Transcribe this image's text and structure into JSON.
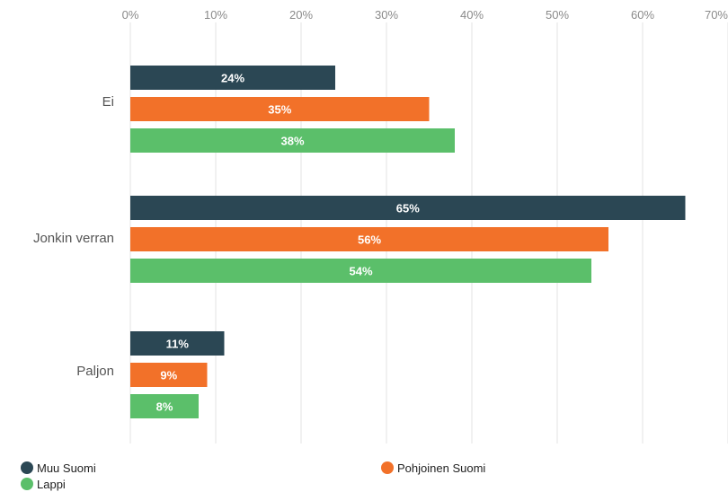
{
  "colors": {
    "muu_suomi": "#2b4754",
    "pohjoinen_suomi": "#f27129",
    "lappi": "#5bbf6a",
    "grid": "#e3e3e3",
    "tick_text": "#8a8a8a",
    "category_text": "#555555"
  },
  "chart_data": {
    "type": "bar",
    "orientation": "horizontal",
    "categories": [
      "Ei",
      "Jonkin verran",
      "Paljon"
    ],
    "series": [
      {
        "name": "Muu Suomi",
        "color": "#2b4754",
        "values": [
          24,
          65,
          11
        ],
        "labels": [
          "24%",
          "65%",
          "11%"
        ]
      },
      {
        "name": "Pohjoinen Suomi",
        "color": "#f27129",
        "values": [
          35,
          56,
          9
        ],
        "labels": [
          "35%",
          "56%",
          "9%"
        ]
      },
      {
        "name": "Lappi",
        "color": "#5bbf6a",
        "values": [
          38,
          54,
          8
        ],
        "labels": [
          "38%",
          "54%",
          "8%"
        ]
      }
    ],
    "xlim": [
      0,
      70
    ],
    "xticks": [
      0,
      10,
      20,
      30,
      40,
      50,
      60,
      70
    ],
    "xtick_labels": [
      "0%",
      "10%",
      "20%",
      "30%",
      "40%",
      "50%",
      "60%",
      "70%"
    ],
    "grid": true,
    "legend_position": "bottom"
  }
}
